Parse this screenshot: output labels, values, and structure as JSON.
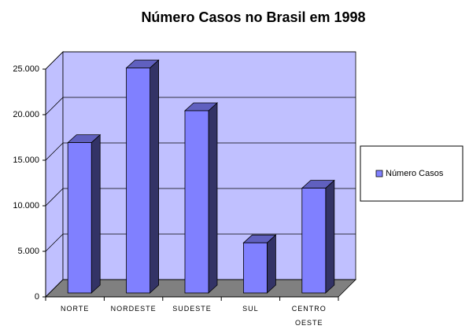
{
  "chart_data": {
    "type": "bar",
    "title": "Número Casos no Brasil em 1998",
    "categories": [
      "NORTE",
      "NORDESTE",
      "SUDESTE",
      "SUL",
      "CENTRO OESTE"
    ],
    "series": [
      {
        "name": "Número Casos",
        "color": "#8080ff",
        "values": [
          16500,
          24700,
          20000,
          5500,
          11500
        ]
      }
    ],
    "ylim": [
      0,
      25000
    ],
    "yticks": [
      0,
      {
        "value": 5000,
        "label": "5.000"
      },
      {
        "value": 10000,
        "label": "10.000"
      },
      {
        "value": 15000,
        "label": "15.000"
      },
      {
        "value": 20000,
        "label": "20.000"
      },
      {
        "value": 25000,
        "label": "25.000"
      }
    ],
    "grid": true,
    "legend": "right"
  }
}
